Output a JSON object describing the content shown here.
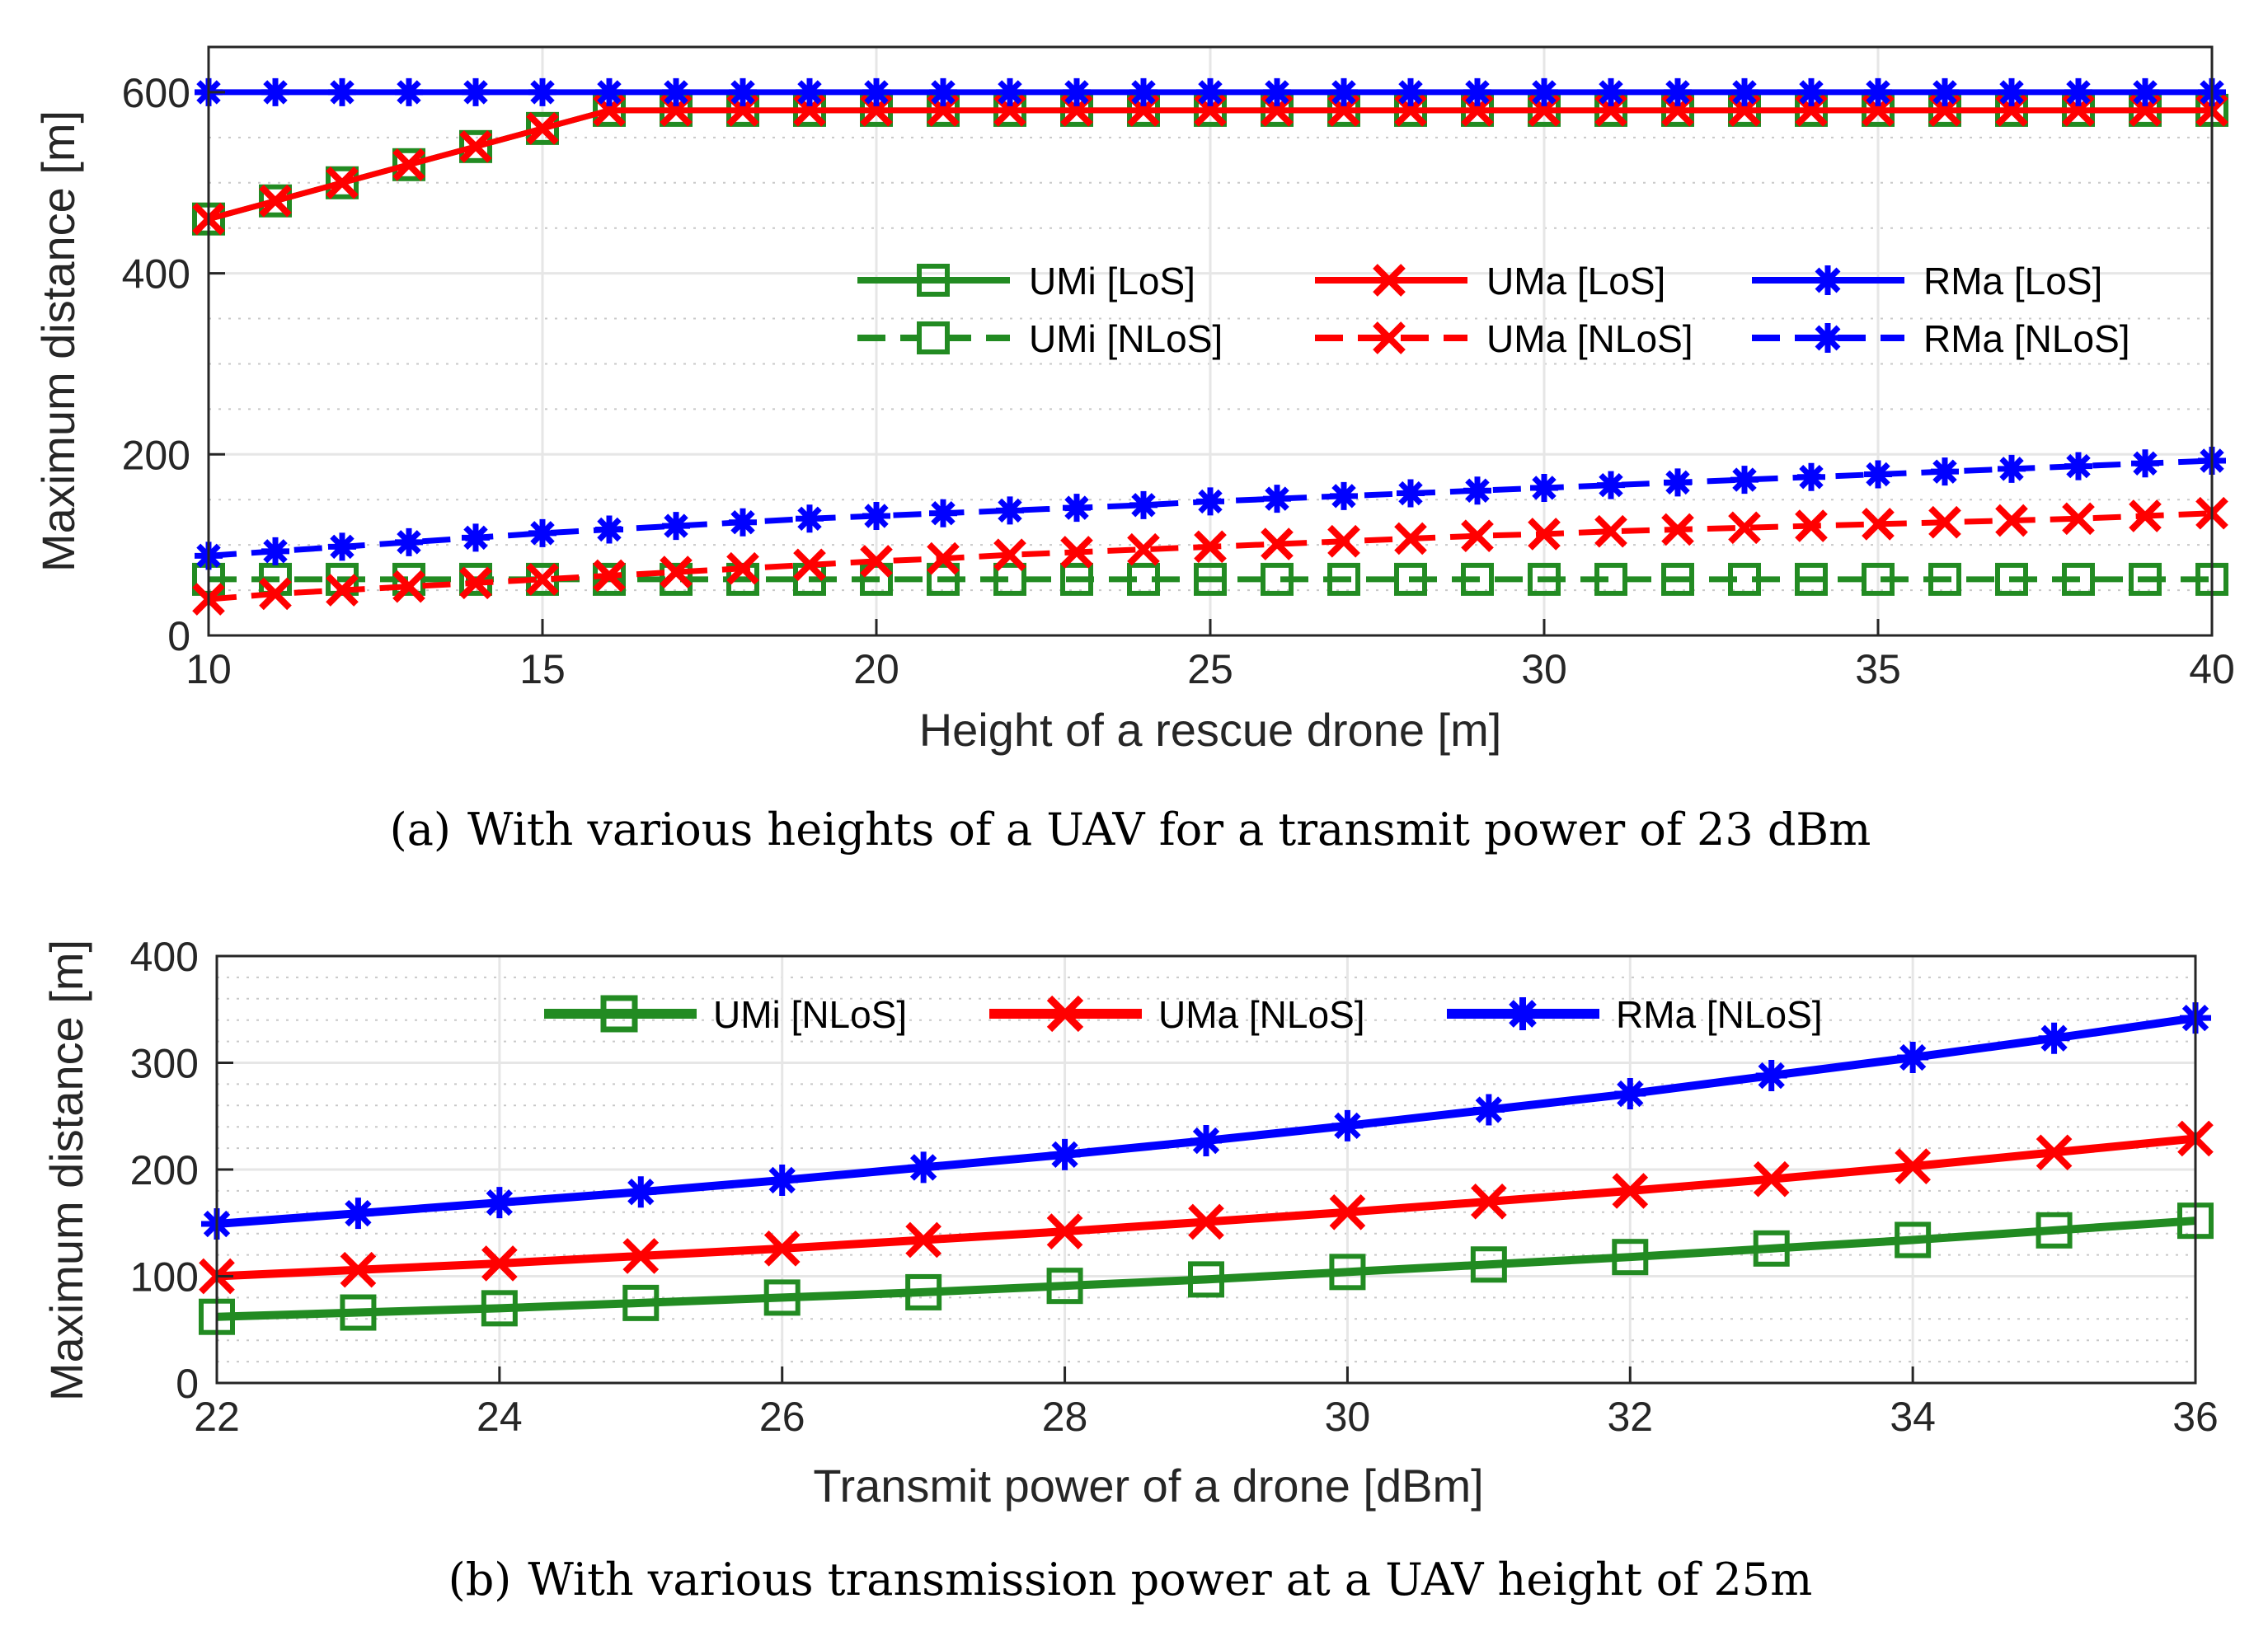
{
  "chart_data": [
    {
      "type": "line",
      "caption_label": "(a)",
      "caption": "With various heights of a UAV for a transmit power of 23 dBm",
      "xlabel": "Height of a rescue drone [m]",
      "ylabel": "Maximum distance [m]",
      "xlim": [
        10,
        40
      ],
      "ylim": [
        0,
        650
      ],
      "xticks": [
        10,
        15,
        20,
        25,
        30,
        35,
        40
      ],
      "yticks": [
        0,
        200,
        400,
        600
      ],
      "legend_placement": "center-right",
      "x": [
        10,
        11,
        12,
        13,
        14,
        15,
        16,
        17,
        18,
        19,
        20,
        21,
        22,
        23,
        24,
        25,
        26,
        27,
        28,
        29,
        30,
        31,
        32,
        33,
        34,
        35,
        36,
        37,
        38,
        39,
        40
      ],
      "series": [
        {
          "name": "UMi [LoS]",
          "color": "#228b22",
          "style": "solid",
          "marker": "square",
          "values": [
            460,
            480,
            500,
            520,
            540,
            560,
            580,
            580,
            580,
            580,
            580,
            580,
            580,
            580,
            580,
            580,
            580,
            580,
            580,
            580,
            580,
            580,
            580,
            580,
            580,
            580,
            580,
            580,
            580,
            580,
            580
          ]
        },
        {
          "name": "UMa [LoS]",
          "color": "#ff0000",
          "style": "solid",
          "marker": "x",
          "values": [
            460,
            480,
            500,
            520,
            540,
            560,
            580,
            580,
            580,
            580,
            580,
            580,
            580,
            580,
            580,
            580,
            580,
            580,
            580,
            580,
            580,
            580,
            580,
            580,
            580,
            580,
            580,
            580,
            580,
            580,
            580
          ]
        },
        {
          "name": "RMa [LoS]",
          "color": "#0000ff",
          "style": "solid",
          "marker": "asterisk",
          "values": [
            600,
            600,
            600,
            600,
            600,
            600,
            600,
            600,
            600,
            600,
            600,
            600,
            600,
            600,
            600,
            600,
            600,
            600,
            600,
            600,
            600,
            600,
            600,
            600,
            600,
            600,
            600,
            600,
            600,
            600,
            600
          ]
        },
        {
          "name": "UMi [NLoS]",
          "color": "#228b22",
          "style": "dashed",
          "marker": "square",
          "values": [
            62,
            62,
            62,
            62,
            62,
            62,
            62,
            62,
            62,
            62,
            62,
            62,
            62,
            62,
            62,
            62,
            62,
            62,
            62,
            62,
            62,
            62,
            62,
            62,
            62,
            62,
            62,
            62,
            62,
            62,
            62
          ]
        },
        {
          "name": "UMa [NLoS]",
          "color": "#ff0000",
          "style": "dashed",
          "marker": "x",
          "values": [
            40,
            46,
            50,
            54,
            58,
            62,
            66,
            70,
            74,
            78,
            82,
            85,
            89,
            92,
            95,
            98,
            101,
            104,
            107,
            110,
            112,
            115,
            117,
            119,
            121,
            123,
            125,
            127,
            129,
            132,
            135
          ]
        },
        {
          "name": "RMa [NLoS]",
          "color": "#0000ff",
          "style": "dashed",
          "marker": "asterisk",
          "values": [
            88,
            93,
            98,
            103,
            108,
            113,
            117,
            121,
            125,
            129,
            132,
            135,
            138,
            141,
            144,
            148,
            151,
            154,
            157,
            160,
            163,
            166,
            169,
            172,
            175,
            178,
            181,
            184,
            187,
            190,
            193
          ]
        }
      ]
    },
    {
      "type": "line",
      "caption_label": "(b)",
      "caption": "With various transmission power at a UAV height of 25m",
      "xlabel": "Transmit power of a drone [dBm]",
      "ylabel": "Maximum distance [m]",
      "xlim": [
        22,
        36
      ],
      "ylim": [
        0,
        400
      ],
      "xticks": [
        22,
        24,
        26,
        28,
        30,
        32,
        34,
        36
      ],
      "yticks": [
        0,
        100,
        200,
        300,
        400
      ],
      "legend_placement": "top",
      "x": [
        22,
        23,
        24,
        25,
        26,
        27,
        28,
        29,
        30,
        31,
        32,
        33,
        34,
        35,
        36
      ],
      "series": [
        {
          "name": "UMi [NLoS]",
          "color": "#228b22",
          "style": "solid",
          "marker": "square",
          "values": [
            62,
            66,
            70,
            75,
            80,
            85,
            91,
            97,
            104,
            111,
            118,
            126,
            134,
            143,
            152
          ]
        },
        {
          "name": "UMa [NLoS]",
          "color": "#ff0000",
          "style": "solid",
          "marker": "x",
          "values": [
            100,
            106,
            112,
            119,
            126,
            134,
            142,
            151,
            160,
            170,
            180,
            191,
            203,
            216,
            229
          ]
        },
        {
          "name": "RMa [NLoS]",
          "color": "#0000ff",
          "style": "solid",
          "marker": "asterisk",
          "values": [
            149,
            159,
            169,
            179,
            190,
            202,
            214,
            227,
            241,
            256,
            271,
            288,
            305,
            323,
            342
          ]
        }
      ]
    }
  ]
}
